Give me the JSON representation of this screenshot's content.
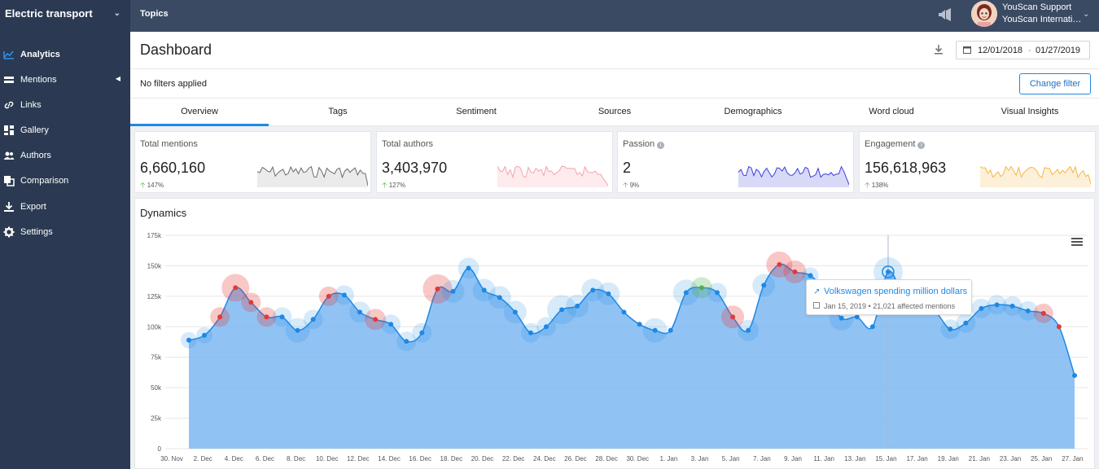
{
  "project": {
    "name": "Electric transport"
  },
  "topbar": {
    "topics_label": "Topics",
    "user_name": "YouScan Support",
    "user_org": "YouScan Internati…"
  },
  "sidebar": {
    "items": [
      {
        "label": "Analytics",
        "icon": "chart-icon",
        "active": true
      },
      {
        "label": "Mentions",
        "icon": "mentions-icon"
      },
      {
        "label": "Links",
        "icon": "link-icon"
      },
      {
        "label": "Gallery",
        "icon": "gallery-icon"
      },
      {
        "label": "Authors",
        "icon": "authors-icon"
      },
      {
        "label": "Comparison",
        "icon": "comparison-icon"
      },
      {
        "label": "Export",
        "icon": "export-icon"
      },
      {
        "label": "Settings",
        "icon": "gear-icon"
      }
    ]
  },
  "header": {
    "title": "Dashboard",
    "date_from": "12/01/2018",
    "date_sep": "-",
    "date_to": "01/27/2019"
  },
  "filters": {
    "text": "No filters applied",
    "change_button": "Change filter"
  },
  "tabs": [
    "Overview",
    "Tags",
    "Sentiment",
    "Sources",
    "Demographics",
    "Word cloud",
    "Visual Insights"
  ],
  "cards": [
    {
      "label": "Total mentions",
      "value": "6,660,160",
      "change": "147%",
      "color": "#6b6b6b",
      "fill": "#ebebeb",
      "info": false
    },
    {
      "label": "Total authors",
      "value": "3,403,970",
      "change": "127%",
      "color": "#f5a3ad",
      "fill": "#fdebed",
      "info": false
    },
    {
      "label": "Passion",
      "value": "2",
      "change": "9%",
      "color": "#3b3ee0",
      "fill": "#d8d9f7",
      "info": true
    },
    {
      "label": "Engagement",
      "value": "156,618,963",
      "change": "138%",
      "color": "#f5b64a",
      "fill": "#fdf0d8",
      "info": true
    }
  ],
  "dynamics": {
    "title": "Dynamics",
    "tooltip": {
      "title": "Volkswagen spending million dollars",
      "subtitle": "Jan 15, 2019 • 21,021 affected mentions"
    }
  },
  "chart_data": {
    "type": "area",
    "title": "Dynamics",
    "y_ticks": [
      "0",
      "25k",
      "50k",
      "75k",
      "100k",
      "125k",
      "150k",
      "175k"
    ],
    "ylim": [
      0,
      175000
    ],
    "x_ticks": [
      "30. Nov",
      "2. Dec",
      "4. Dec",
      "6. Dec",
      "8. Dec",
      "10. Dec",
      "12. Dec",
      "14. Dec",
      "16. Dec",
      "18. Dec",
      "20. Dec",
      "22. Dec",
      "24. Dec",
      "26. Dec",
      "28. Dec",
      "30. Dec",
      "1. Jan",
      "3. Jan",
      "5. Jan",
      "7. Jan",
      "9. Jan",
      "11. Jan",
      "13. Jan",
      "15. Jan",
      "17. Jan",
      "19. Jan",
      "21. Jan",
      "23. Jan",
      "25. Jan",
      "27. Jan"
    ],
    "x": [
      "Dec 1",
      "Dec 2",
      "Dec 3",
      "Dec 4",
      "Dec 5",
      "Dec 6",
      "Dec 7",
      "Dec 8",
      "Dec 9",
      "Dec 10",
      "Dec 11",
      "Dec 12",
      "Dec 13",
      "Dec 14",
      "Dec 15",
      "Dec 16",
      "Dec 17",
      "Dec 18",
      "Dec 19",
      "Dec 20",
      "Dec 21",
      "Dec 22",
      "Dec 23",
      "Dec 24",
      "Dec 25",
      "Dec 26",
      "Dec 27",
      "Dec 28",
      "Dec 29",
      "Dec 30",
      "Dec 31",
      "Jan 1",
      "Jan 2",
      "Jan 3",
      "Jan 4",
      "Jan 5",
      "Jan 6",
      "Jan 7",
      "Jan 8",
      "Jan 9",
      "Jan 10",
      "Jan 11",
      "Jan 12",
      "Jan 13",
      "Jan 14",
      "Jan 15",
      "Jan 16",
      "Jan 17",
      "Jan 18",
      "Jan 19",
      "Jan 20",
      "Jan 21",
      "Jan 22",
      "Jan 23",
      "Jan 24",
      "Jan 25",
      "Jan 26",
      "Jan 27"
    ],
    "values": [
      89000,
      93000,
      108000,
      132000,
      120000,
      108000,
      108000,
      97000,
      106000,
      125000,
      126000,
      112000,
      106000,
      102000,
      88000,
      95000,
      131000,
      129000,
      148000,
      130000,
      124000,
      112000,
      95000,
      100000,
      114000,
      117000,
      130000,
      127000,
      112000,
      102000,
      97000,
      97000,
      128000,
      132000,
      128000,
      108000,
      97000,
      134000,
      151000,
      145000,
      142000,
      128000,
      107000,
      108000,
      100000,
      145000,
      125000,
      117000,
      113000,
      98000,
      103000,
      115000,
      118000,
      117000,
      113000,
      111000,
      100000,
      60000
    ],
    "annotations": [
      {
        "x": "Jan 15",
        "label": "Volkswagen spending million dollars",
        "affected_mentions": 21021
      }
    ],
    "marker_colors": {
      "positive": "#4caf50",
      "negative": "#e53935",
      "neutral": "#1e88e5"
    },
    "fill_color": "#7cb8f2",
    "line_color": "#1e88e5",
    "grid": true
  }
}
